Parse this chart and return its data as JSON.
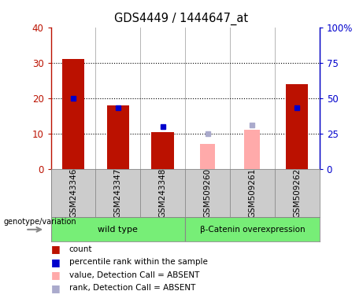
{
  "title": "GDS4449 / 1444647_at",
  "samples": [
    "GSM243346",
    "GSM243347",
    "GSM243348",
    "GSM509260",
    "GSM509261",
    "GSM509262"
  ],
  "count_values": [
    31,
    18,
    10.5,
    null,
    null,
    24
  ],
  "rank_values_pct": [
    50,
    43,
    30,
    null,
    null,
    43
  ],
  "absent_value_values": [
    null,
    null,
    null,
    7,
    11,
    null
  ],
  "absent_rank_values_pct": [
    null,
    null,
    null,
    25,
    31,
    null
  ],
  "count_color": "#bb1100",
  "rank_color": "#0000cc",
  "absent_value_color": "#ffaaaa",
  "absent_rank_color": "#aaaacc",
  "ylim_left": [
    0,
    40
  ],
  "ylim_right": [
    0,
    100
  ],
  "yticks_left": [
    0,
    10,
    20,
    30,
    40
  ],
  "yticks_right": [
    0,
    25,
    50,
    75,
    100
  ],
  "ytick_labels_left": [
    "0",
    "10",
    "20",
    "30",
    "40"
  ],
  "ytick_labels_right": [
    "0",
    "25",
    "50",
    "75",
    "100%"
  ],
  "bar_width": 0.5,
  "background_color": "#ffffff",
  "plot_bg_color": "#ffffff",
  "cell_bg_color": "#cccccc",
  "green_color": "#77ee77",
  "legend_items": [
    {
      "label": "count",
      "color": "#bb1100"
    },
    {
      "label": "percentile rank within the sample",
      "color": "#0000cc"
    },
    {
      "label": "value, Detection Call = ABSENT",
      "color": "#ffaaaa"
    },
    {
      "label": "rank, Detection Call = ABSENT",
      "color": "#aaaacc"
    }
  ],
  "groups": [
    {
      "label": "wild type",
      "start": 0,
      "end": 3
    },
    {
      "label": "β-Catenin overexpression",
      "start": 3,
      "end": 6
    }
  ]
}
